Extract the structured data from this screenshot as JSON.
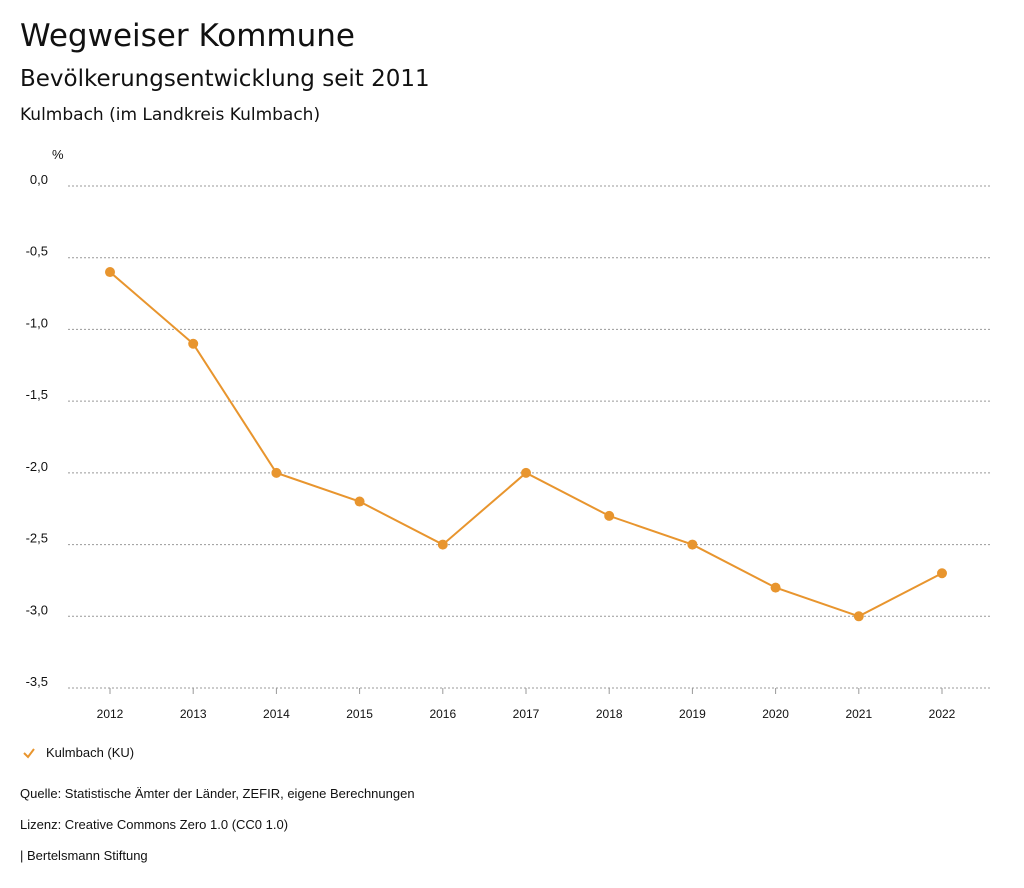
{
  "header": {
    "title": "Wegweiser Kommune",
    "subtitle": "Bevölkerungsentwicklung seit 2011",
    "region": "Kulmbach (im Landkreis Kulmbach)"
  },
  "chart_data": {
    "type": "line",
    "ylabel": "%",
    "x": [
      "2012",
      "2013",
      "2014",
      "2015",
      "2016",
      "2017",
      "2018",
      "2019",
      "2020",
      "2021",
      "2022"
    ],
    "series": [
      {
        "name": "Kulmbach (KU)",
        "color": "#E8952E",
        "values": [
          -0.6,
          -1.1,
          -2.0,
          -2.2,
          -2.5,
          -2.0,
          -2.3,
          -2.5,
          -2.8,
          -3.0,
          -2.7
        ]
      }
    ],
    "ylim": [
      -3.5,
      0
    ],
    "yticks": [
      "0,0",
      "-0,5",
      "-1,0",
      "-1,5",
      "-2,0",
      "-2,5",
      "-3,0",
      "-3,5"
    ],
    "grid": true,
    "legend": "bottom-left"
  },
  "footer": {
    "source": "Quelle: Statistische Ämter der Länder, ZEFIR, eigene Berechnungen",
    "license": "Lizenz: Creative Commons Zero 1.0 (CC0 1.0)",
    "publisher": "| Bertelsmann Stiftung"
  }
}
